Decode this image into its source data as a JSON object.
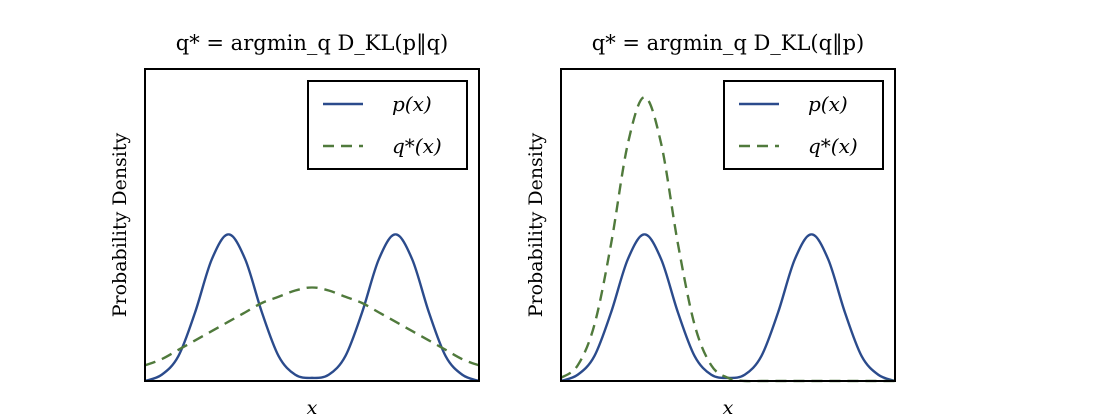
{
  "chart_data": [
    {
      "type": "line",
      "title": "q* = argmin_q D_KL(p‖q)",
      "xlabel": "x",
      "ylabel": "Probability Density",
      "xlim": [
        0,
        10
      ],
      "ylim": [
        0,
        1
      ],
      "legend": "upper right",
      "x": [
        0,
        0.5,
        1,
        1.5,
        2,
        2.5,
        3,
        3.5,
        4,
        4.5,
        5,
        5.5,
        6,
        6.5,
        7,
        7.5,
        8,
        8.5,
        9,
        9.5,
        10
      ],
      "series": [
        {
          "name": "p(x)",
          "color": "#2b4b8c",
          "dash": "solid",
          "values": [
            0.0,
            0.02,
            0.08,
            0.22,
            0.39,
            0.47,
            0.39,
            0.22,
            0.08,
            0.02,
            0.01,
            0.02,
            0.08,
            0.22,
            0.39,
            0.47,
            0.39,
            0.22,
            0.08,
            0.02,
            0.0
          ]
        },
        {
          "name": "q*(x)",
          "color": "#507a3c",
          "dash": "dashed",
          "values": [
            0.05,
            0.07,
            0.1,
            0.13,
            0.16,
            0.19,
            0.22,
            0.25,
            0.27,
            0.29,
            0.3,
            0.29,
            0.27,
            0.25,
            0.22,
            0.19,
            0.16,
            0.13,
            0.1,
            0.07,
            0.05
          ]
        }
      ]
    },
    {
      "type": "line",
      "title": "q* = argmin_q D_KL(q‖p)",
      "xlabel": "x",
      "ylabel": "Probability Density",
      "xlim": [
        0,
        10
      ],
      "ylim": [
        0,
        1
      ],
      "legend": "upper right",
      "x": [
        0,
        0.5,
        1,
        1.5,
        2,
        2.5,
        3,
        3.5,
        4,
        4.5,
        5,
        5.5,
        6,
        6.5,
        7,
        7.5,
        8,
        8.5,
        9,
        9.5,
        10
      ],
      "series": [
        {
          "name": "p(x)",
          "color": "#2b4b8c",
          "dash": "solid",
          "values": [
            0.0,
            0.02,
            0.08,
            0.22,
            0.39,
            0.47,
            0.39,
            0.22,
            0.08,
            0.02,
            0.01,
            0.02,
            0.08,
            0.22,
            0.39,
            0.47,
            0.39,
            0.22,
            0.08,
            0.02,
            0.0
          ]
        },
        {
          "name": "q*(x)",
          "color": "#507a3c",
          "dash": "dashed",
          "values": [
            0.01,
            0.05,
            0.18,
            0.44,
            0.76,
            0.91,
            0.76,
            0.44,
            0.18,
            0.05,
            0.01,
            0,
            0,
            0,
            0,
            0,
            0,
            0,
            0,
            0,
            0
          ]
        }
      ]
    }
  ]
}
